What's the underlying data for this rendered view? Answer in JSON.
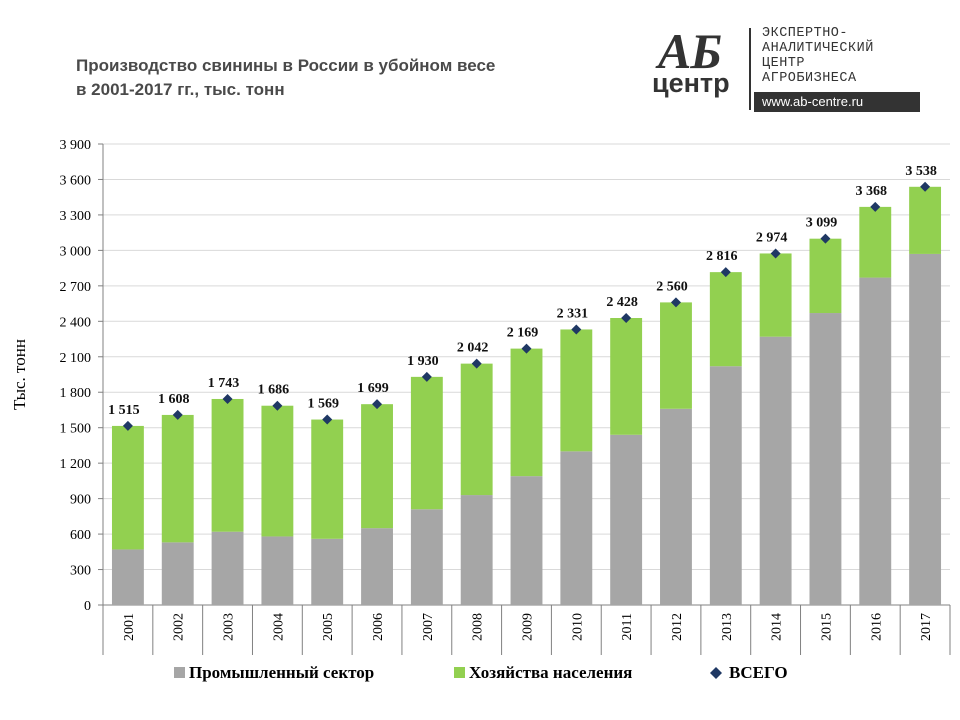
{
  "header": {
    "title_line1": "Производство свинины в России в убойном весе",
    "title_line2": "в 2001-2017 гг., тыс. тонн"
  },
  "logo": {
    "mark_top": "АБ",
    "mark_bottom": "центр",
    "line1": "ЭКСПЕРТНО-",
    "line2": "АНАЛИТИЧЕСКИЙ",
    "line3": "ЦЕНТР",
    "line4": "АГРОБИЗНЕСА",
    "url": "www.ab-centre.ru"
  },
  "chart_data": {
    "type": "bar",
    "stacked": true,
    "categories": [
      "2001",
      "2002",
      "2003",
      "2004",
      "2005",
      "2006",
      "2007",
      "2008",
      "2009",
      "2010",
      "2011",
      "2012",
      "2013",
      "2014",
      "2015",
      "2016",
      "2017"
    ],
    "series": [
      {
        "name": "Промышленный сектор",
        "color": "#a6a6a6",
        "values": [
          470,
          530,
          620,
          580,
          560,
          650,
          810,
          930,
          1090,
          1300,
          1440,
          1660,
          2020,
          2270,
          2470,
          2770,
          2970
        ]
      },
      {
        "name": "Хозяйства населения",
        "color": "#92d050",
        "values": [
          1045,
          1078,
          1123,
          1106,
          1009,
          1049,
          1120,
          1112,
          1079,
          1031,
          988,
          900,
          796,
          704,
          629,
          598,
          568
        ]
      }
    ],
    "total": {
      "name": "ВСЕГО",
      "color": "#1f3864",
      "values": [
        1515,
        1608,
        1743,
        1686,
        1569,
        1699,
        1930,
        2042,
        2169,
        2331,
        2428,
        2560,
        2816,
        2974,
        3099,
        3368,
        3538
      ]
    },
    "total_labels": [
      "1 515",
      "1 608",
      "1 743",
      "1 686",
      "1 569",
      "1 699",
      "1 930",
      "2 042",
      "2 169",
      "2 331",
      "2 428",
      "2 560",
      "2 816",
      "2 974",
      "3 099",
      "3 368",
      "3 538"
    ],
    "ylabel": "Тыс. тонн",
    "xlabel": "",
    "ylim": [
      0,
      3900
    ],
    "yticks": [
      0,
      300,
      600,
      900,
      1200,
      1500,
      1800,
      2100,
      2400,
      2700,
      3000,
      3300,
      3600,
      3900
    ],
    "ytick_labels": [
      "0",
      "300",
      "600",
      "900",
      "1 200",
      "1 500",
      "1 800",
      "2 100",
      "2 400",
      "2 700",
      "3 000",
      "3 300",
      "3 600",
      "3 900"
    ],
    "grid": true,
    "legend_position": "bottom"
  }
}
